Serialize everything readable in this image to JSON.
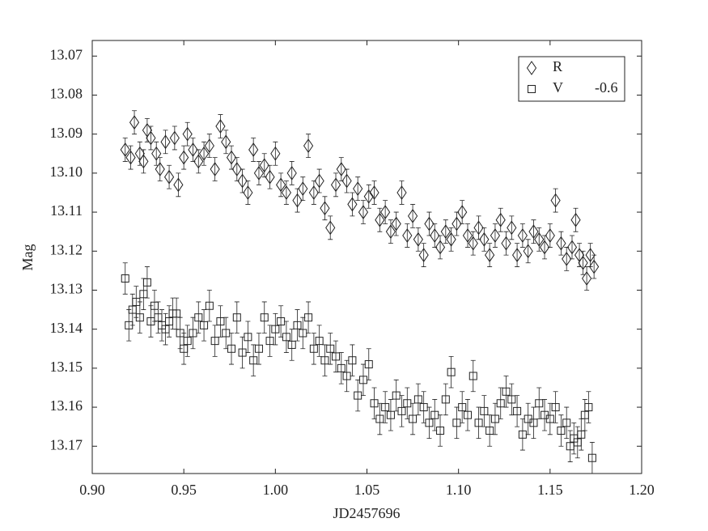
{
  "chart_data": {
    "type": "scatter",
    "xlabel": "JD2457696",
    "ylabel": "Mag",
    "xlim": [
      0.9,
      1.2
    ],
    "xticks": [
      {
        "value": 0.9,
        "label": "0.90"
      },
      0.95,
      {
        "value": 1.0,
        "label": "1.00"
      },
      1.05,
      {
        "value": 1.1,
        "label": "1.10"
      },
      1.15,
      {
        "value": 1.2,
        "label": "1.20"
      }
    ],
    "ylim": [
      13.066,
      13.177
    ],
    "yinverted": true,
    "yticks": [
      13.07,
      13.08,
      13.09,
      {
        "value": 13.1,
        "label": "13.10"
      },
      13.11,
      13.12,
      13.13,
      13.14,
      13.15,
      13.16,
      13.17
    ],
    "grid": false,
    "legend": "upper right",
    "series": [
      {
        "name": "R",
        "marker": "diamond",
        "color": "#222",
        "yerr": 0.003,
        "x": [
          0.918,
          0.921,
          0.923,
          0.926,
          0.928,
          0.93,
          0.932,
          0.935,
          0.937,
          0.94,
          0.942,
          0.945,
          0.947,
          0.95,
          0.952,
          0.955,
          0.958,
          0.961,
          0.964,
          0.967,
          0.97,
          0.973,
          0.976,
          0.979,
          0.982,
          0.985,
          0.988,
          0.991,
          0.994,
          0.997,
          1.0,
          1.003,
          1.006,
          1.009,
          1.012,
          1.015,
          1.018,
          1.021,
          1.024,
          1.027,
          1.03,
          1.033,
          1.036,
          1.039,
          1.042,
          1.045,
          1.048,
          1.051,
          1.054,
          1.057,
          1.06,
          1.063,
          1.066,
          1.069,
          1.072,
          1.075,
          1.078,
          1.081,
          1.084,
          1.087,
          1.09,
          1.093,
          1.096,
          1.099,
          1.102,
          1.105,
          1.108,
          1.111,
          1.114,
          1.117,
          1.12,
          1.123,
          1.126,
          1.129,
          1.132,
          1.135,
          1.138,
          1.141,
          1.144,
          1.147,
          1.15,
          1.153,
          1.156,
          1.159,
          1.162,
          1.164,
          1.166,
          1.168,
          1.17,
          1.172,
          1.174
        ],
        "values": [
          13.094,
          13.096,
          13.087,
          13.095,
          13.097,
          13.089,
          13.091,
          13.095,
          13.099,
          13.092,
          13.101,
          13.091,
          13.103,
          13.096,
          13.09,
          13.094,
          13.097,
          13.095,
          13.093,
          13.099,
          13.088,
          13.092,
          13.096,
          13.099,
          13.102,
          13.105,
          13.094,
          13.1,
          13.098,
          13.101,
          13.095,
          13.103,
          13.105,
          13.1,
          13.107,
          13.104,
          13.093,
          13.105,
          13.102,
          13.109,
          13.114,
          13.103,
          13.099,
          13.102,
          13.108,
          13.104,
          13.11,
          13.106,
          13.105,
          13.112,
          13.11,
          13.115,
          13.113,
          13.105,
          13.116,
          13.111,
          13.117,
          13.121,
          13.113,
          13.116,
          13.119,
          13.115,
          13.117,
          13.113,
          13.11,
          13.116,
          13.118,
          13.114,
          13.117,
          13.121,
          13.116,
          13.112,
          13.118,
          13.114,
          13.121,
          13.116,
          13.12,
          13.115,
          13.117,
          13.119,
          13.116,
          13.107,
          13.118,
          13.122,
          13.119,
          13.112,
          13.121,
          13.123,
          13.127,
          13.121,
          13.124
        ]
      },
      {
        "name": "V",
        "offset_label": "-0.6",
        "marker": "square",
        "color": "#222",
        "yerr": 0.004,
        "x": [
          0.918,
          0.92,
          0.922,
          0.924,
          0.926,
          0.928,
          0.93,
          0.932,
          0.934,
          0.936,
          0.938,
          0.94,
          0.942,
          0.944,
          0.946,
          0.948,
          0.95,
          0.952,
          0.955,
          0.958,
          0.961,
          0.964,
          0.967,
          0.97,
          0.973,
          0.976,
          0.979,
          0.982,
          0.985,
          0.988,
          0.991,
          0.994,
          0.997,
          1.0,
          1.003,
          1.006,
          1.009,
          1.012,
          1.015,
          1.018,
          1.021,
          1.024,
          1.027,
          1.03,
          1.033,
          1.036,
          1.039,
          1.042,
          1.045,
          1.048,
          1.051,
          1.054,
          1.057,
          1.06,
          1.063,
          1.066,
          1.069,
          1.072,
          1.075,
          1.078,
          1.081,
          1.084,
          1.087,
          1.09,
          1.093,
          1.096,
          1.099,
          1.102,
          1.105,
          1.108,
          1.111,
          1.114,
          1.117,
          1.12,
          1.123,
          1.126,
          1.129,
          1.132,
          1.135,
          1.138,
          1.141,
          1.144,
          1.147,
          1.15,
          1.153,
          1.156,
          1.159,
          1.161,
          1.163,
          1.165,
          1.167,
          1.169,
          1.171,
          1.173
        ],
        "values": [
          13.127,
          13.139,
          13.135,
          13.133,
          13.137,
          13.131,
          13.128,
          13.138,
          13.134,
          13.137,
          13.139,
          13.14,
          13.138,
          13.136,
          13.136,
          13.141,
          13.145,
          13.143,
          13.141,
          13.137,
          13.139,
          13.134,
          13.143,
          13.138,
          13.141,
          13.145,
          13.137,
          13.146,
          13.142,
          13.148,
          13.145,
          13.137,
          13.143,
          13.14,
          13.138,
          13.142,
          13.144,
          13.139,
          13.141,
          13.137,
          13.145,
          13.143,
          13.148,
          13.145,
          13.147,
          13.15,
          13.152,
          13.148,
          13.157,
          13.153,
          13.149,
          13.159,
          13.163,
          13.16,
          13.162,
          13.157,
          13.161,
          13.159,
          13.163,
          13.158,
          13.16,
          13.164,
          13.162,
          13.166,
          13.158,
          13.151,
          13.164,
          13.16,
          13.162,
          13.152,
          13.164,
          13.161,
          13.166,
          13.163,
          13.159,
          13.156,
          13.158,
          13.161,
          13.167,
          13.163,
          13.164,
          13.159,
          13.162,
          13.163,
          13.16,
          13.166,
          13.164,
          13.17,
          13.168,
          13.169,
          13.167,
          13.162,
          13.16,
          13.173
        ]
      }
    ]
  }
}
